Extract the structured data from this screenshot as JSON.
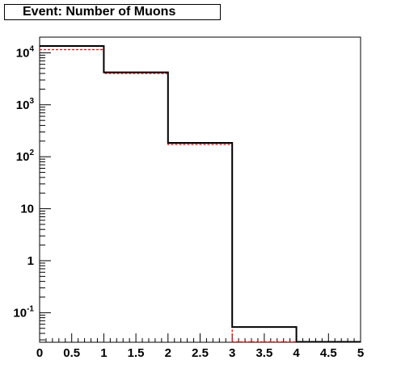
{
  "title": "Event: Number of Muons",
  "chart_data": {
    "type": "histogram",
    "title": "Event: Number of Muons",
    "xlabel": "",
    "ylabel": "",
    "xlim": [
      0,
      5
    ],
    "ylim": [
      0.027,
      20000
    ],
    "yscale": "log",
    "x_ticks": [
      "0",
      "0.5",
      "1",
      "1.5",
      "2",
      "2.5",
      "3",
      "3.5",
      "4",
      "4.5",
      "5"
    ],
    "y_ticks": [
      {
        "base": "10",
        "exp": "-1"
      },
      {
        "base": "1",
        "exp": ""
      },
      {
        "base": "10",
        "exp": ""
      },
      {
        "base": "10",
        "exp": "2"
      },
      {
        "base": "10",
        "exp": "3"
      },
      {
        "base": "10",
        "exp": "4"
      }
    ],
    "bin_edges": [
      0,
      1,
      2,
      3,
      4,
      5
    ],
    "series": [
      {
        "color": "#000000",
        "style": "solid",
        "values": [
          13500,
          4200,
          185,
          0.053,
          0.027
        ]
      },
      {
        "color": "#ff0000",
        "style": "dashed",
        "values": [
          11500,
          4000,
          172,
          0.027,
          0.027
        ]
      }
    ]
  }
}
